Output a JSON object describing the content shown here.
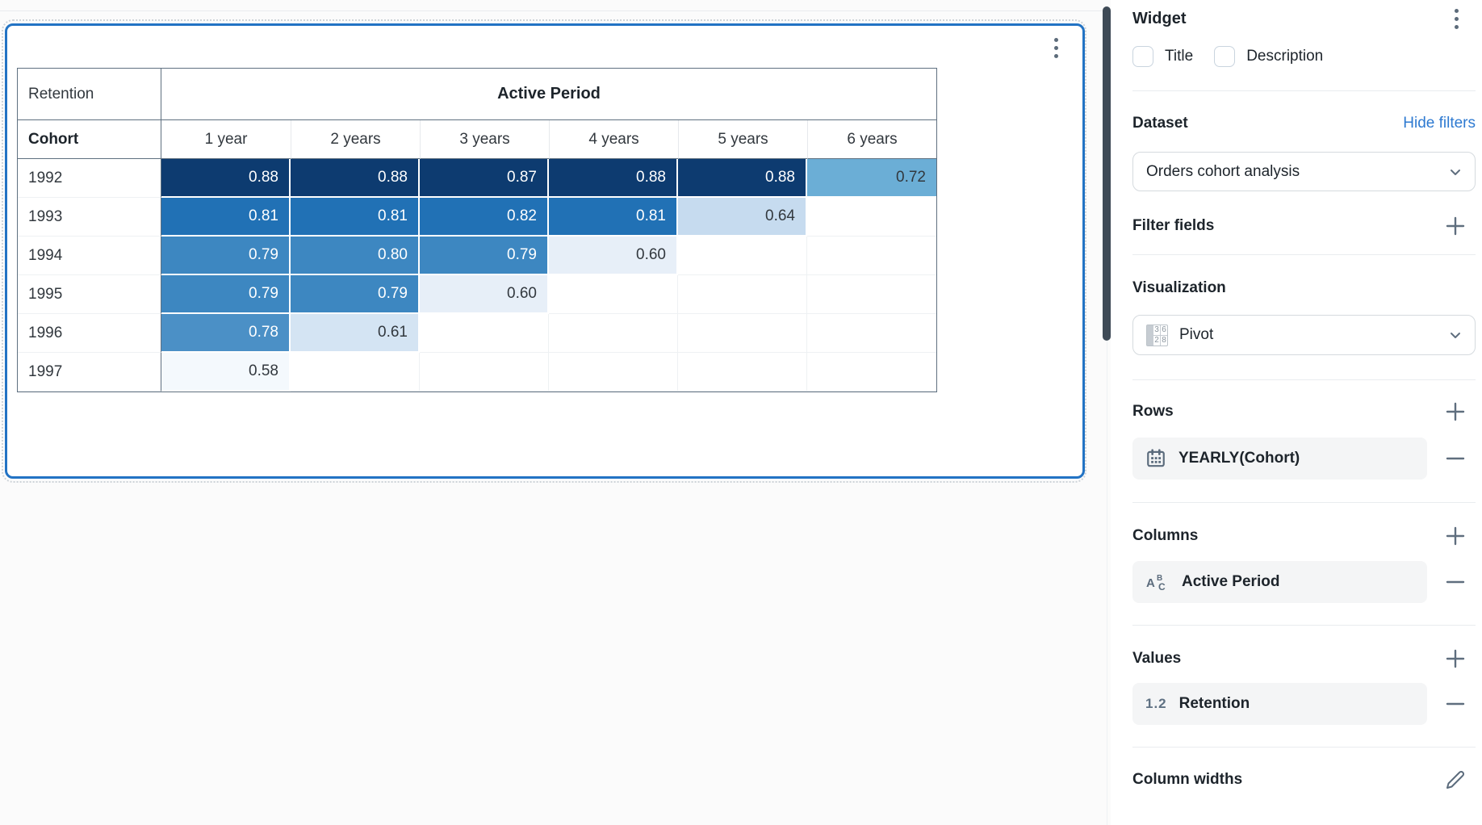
{
  "canvas": {
    "table": {
      "corner_label": "Retention",
      "column_group_label": "Active Period",
      "row_dimension_label": "Cohort",
      "column_headers": [
        "1 year",
        "2 years",
        "3 years",
        "4 years",
        "5 years",
        "6 years"
      ],
      "rows": [
        {
          "label": "1992",
          "cells": [
            {
              "value": "0.88",
              "bg": "#0d3b70",
              "light_text": true
            },
            {
              "value": "0.88",
              "bg": "#0d3b70",
              "light_text": true
            },
            {
              "value": "0.87",
              "bg": "#0d3b70",
              "light_text": true
            },
            {
              "value": "0.88",
              "bg": "#0d3b70",
              "light_text": true
            },
            {
              "value": "0.88",
              "bg": "#0d3b70",
              "light_text": true
            },
            {
              "value": "0.72",
              "bg": "#6baed6",
              "light_text": false
            }
          ]
        },
        {
          "label": "1993",
          "cells": [
            {
              "value": "0.81",
              "bg": "#2171b5",
              "light_text": true
            },
            {
              "value": "0.81",
              "bg": "#2171b5",
              "light_text": true
            },
            {
              "value": "0.82",
              "bg": "#2171b5",
              "light_text": true
            },
            {
              "value": "0.81",
              "bg": "#2171b5",
              "light_text": true
            },
            {
              "value": "0.64",
              "bg": "#c6dbef",
              "light_text": false
            },
            null
          ]
        },
        {
          "label": "1994",
          "cells": [
            {
              "value": "0.79",
              "bg": "#3d87c1",
              "light_text": true
            },
            {
              "value": "0.80",
              "bg": "#3d87c1",
              "light_text": true
            },
            {
              "value": "0.79",
              "bg": "#3d87c1",
              "light_text": true
            },
            {
              "value": "0.60",
              "bg": "#e7eff8",
              "light_text": false
            },
            null,
            null
          ]
        },
        {
          "label": "1995",
          "cells": [
            {
              "value": "0.79",
              "bg": "#3d87c1",
              "light_text": true
            },
            {
              "value": "0.79",
              "bg": "#3d87c1",
              "light_text": true
            },
            {
              "value": "0.60",
              "bg": "#e7eff8",
              "light_text": false
            },
            null,
            null,
            null
          ]
        },
        {
          "label": "1996",
          "cells": [
            {
              "value": "0.78",
              "bg": "#4b90c6",
              "light_text": true
            },
            {
              "value": "0.61",
              "bg": "#d4e4f3",
              "light_text": false
            },
            null,
            null,
            null,
            null
          ]
        },
        {
          "label": "1997",
          "cells": [
            {
              "value": "0.58",
              "bg": "#f4f9fd",
              "light_text": false
            },
            null,
            null,
            null,
            null,
            null
          ]
        }
      ]
    }
  },
  "panel": {
    "title": "Widget",
    "checkboxes": [
      {
        "label": "Title",
        "checked": false
      },
      {
        "label": "Description",
        "checked": false
      }
    ],
    "dataset": {
      "heading": "Dataset",
      "action_link": "Hide filters",
      "selected": "Orders cohort analysis"
    },
    "filter_fields": {
      "heading": "Filter fields"
    },
    "visualization": {
      "heading": "Visualization",
      "selected": "Pivot",
      "icon_numbers": [
        "3",
        "6",
        "2",
        "8"
      ]
    },
    "sections": {
      "rows": {
        "heading": "Rows",
        "item_label": "YEARLY(Cohort)"
      },
      "columns": {
        "heading": "Columns",
        "item_label": "Active Period"
      },
      "values": {
        "heading": "Values",
        "value_prefix": "1.2",
        "item_label": "Retention"
      }
    },
    "column_widths": {
      "heading": "Column widths"
    }
  },
  "colors": {
    "widget_border": "#2273c4",
    "link": "#2e7ad1",
    "slate_icon": "#5b6b7c",
    "scrollbar_thumb": "#3e4a56",
    "table_outer_border": "#5f7080"
  }
}
